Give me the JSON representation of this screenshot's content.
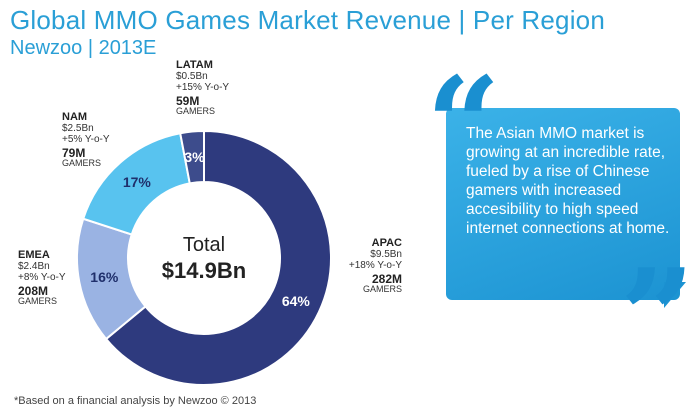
{
  "header": {
    "title": "Global MMO Games Market Revenue | Per Region",
    "subtitle": "Newzoo | 2013E"
  },
  "chart_data": {
    "type": "pie",
    "variant": "donut",
    "title": "Global MMO Games Market Revenue | Per Region",
    "categories": [
      "APAC",
      "EMEA",
      "NAM",
      "LATAM"
    ],
    "values": [
      64,
      16,
      17,
      3
    ],
    "value_labels": [
      "64%",
      "16%",
      "17%",
      "3%"
    ],
    "colors": [
      "#2e3a7e",
      "#9ab3e3",
      "#58c3ef",
      "#3d4c8c"
    ],
    "center": {
      "label": "Total",
      "value": "$14.9Bn"
    },
    "regions": [
      {
        "name": "APAC",
        "revenue": "$9.5Bn",
        "growth": "+18% Y-o-Y",
        "gamers": "282M",
        "gamers_unit": "GAMERS"
      },
      {
        "name": "EMEA",
        "revenue": "$2.4Bn",
        "growth": "+8% Y-o-Y",
        "gamers": "208M",
        "gamers_unit": "GAMERS"
      },
      {
        "name": "NAM",
        "revenue": "$2.5Bn",
        "growth": "+5% Y-o-Y",
        "gamers": "79M",
        "gamers_unit": "GAMERS"
      },
      {
        "name": "LATAM",
        "revenue": "$0.5Bn",
        "growth": "+15% Y-o-Y",
        "gamers": "59M",
        "gamers_unit": "GAMERS"
      }
    ]
  },
  "callout": {
    "text": "The Asian MMO market is growing at an incredible rate, fueled by a rise of Chinese gamers with increased accesibility to high speed internet connections at home."
  },
  "footnote": "*Based on a financial analysis by Newzoo © 2013"
}
